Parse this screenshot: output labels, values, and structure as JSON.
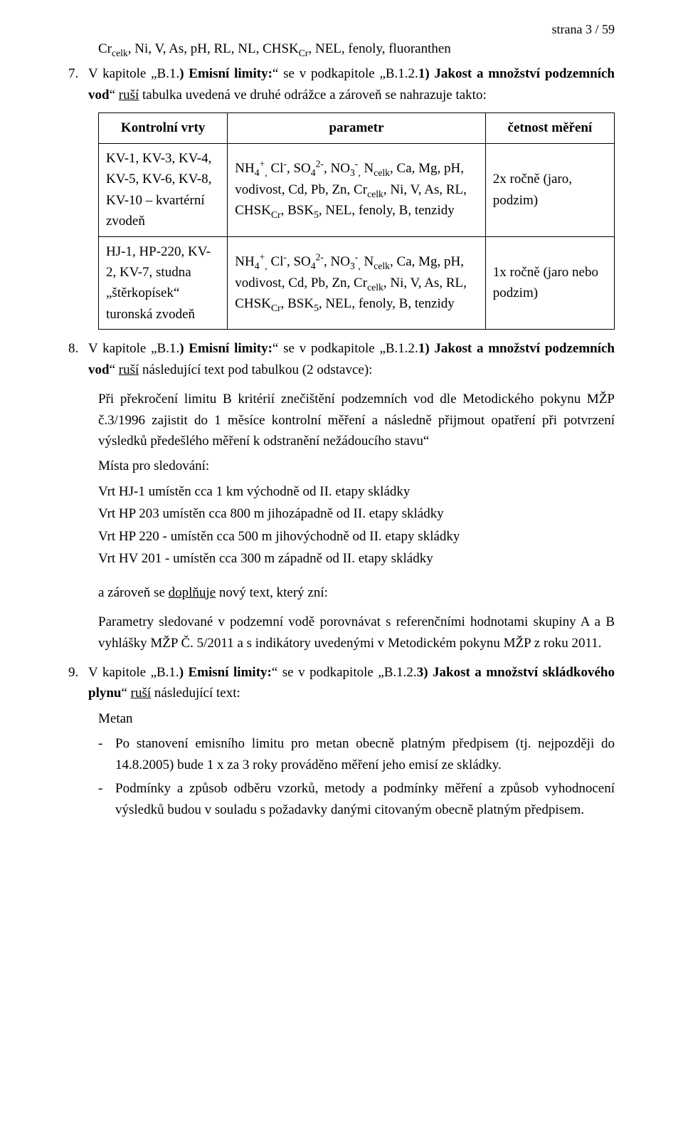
{
  "page_number": "strana 3 / 59",
  "line1": "Cr<sub>celk</sub>, Ni, V, As, pH, RL, NL, CHSK<sub>Cr</sub>, NEL, fenoly,  fluoranthen",
  "p7": {
    "num": "7.",
    "text": "V kapitole  „B.1.<b>) Emisní  limity:</b>“  se  v podkapitole  „B.1.2.<b>1) Jakost  a  množství podzemních vod</b>“ <u>ruší</u> tabulka uvedená ve druhé odrážce a zároveň se nahrazuje takto:"
  },
  "table": {
    "headers": [
      "Kontrolní vrty",
      "parametr",
      "četnost měření"
    ],
    "rows": [
      {
        "c1": "KV-1, KV-3, KV-4, KV-5, KV-6, KV-8, KV-10 – kvartérní zvodeň",
        "c2": "NH<sub>4</sub><sup>+</sup><sub>,</sub> Cl<sup>-</sup>, SO<sub>4</sub><sup>2-</sup>, NO<sub>3</sub><sup>-</sup><sub>,</sub> N<sub>celk</sub>, Ca, Mg, pH, vodivost, Cd, Pb, Zn, Cr<sub>celk</sub>, Ni, V, As, RL, CHSK<sub>Cr</sub>, BSK<sub>5</sub>, NEL, fenoly, B, tenzidy",
        "c3": "2x ročně (jaro, podzim)"
      },
      {
        "c1": "HJ-1, HP-220, KV-2, KV-7, studna „štěrkopísek“ turonská zvodeň",
        "c2": "NH<sub>4</sub><sup>+</sup><sub>,</sub> Cl<sup>-</sup>, SO<sub>4</sub><sup>2-</sup>, NO<sub>3</sub><sup>-</sup><sub>,</sub> N<sub>celk</sub>, Ca, Mg, pH, vodivost, Cd, Pb, Zn, Cr<sub>celk</sub>, Ni, V, As, RL, CHSK<sub>Cr</sub>, BSK<sub>5</sub>, NEL, fenoly, B, tenzidy",
        "c3": "1x ročně (jaro nebo podzim)"
      }
    ]
  },
  "p8": {
    "num": "8.",
    "text": "V  kapitole  „B.1.<b>) Emisní  limity:</b>“  se  v podkapitole  „B.1.2.<b>1) Jakost  a  množství podzemních vod</b>“ <u>ruší</u> následující text pod tabulkou (2 odstavce):"
  },
  "para_prekroceni": "Při překročení limitu B kritérií znečištění podzemních vod dle Metodického pokynu MŽP č.3/1996 zajistit do 1 měsíce kontrolní měření a následně přijmout opatření při potvrzení výsledků předešlého měření k odstranění nežádoucího stavu“",
  "mista_label": "Místa pro sledování:",
  "mista": [
    "Vrt HJ-1 umístěn cca 1 km východně od II. etapy skládky",
    "Vrt HP 203 umístěn cca 800 m jihozápadně od II. etapy skládky",
    "Vrt HP 220 - umístěn cca 500 m jihovýchodně od II. etapy skládky",
    "Vrt HV 201 - umístěn cca 300 m západně od II. etapy skládky"
  ],
  "doplnuje": "a zároveň se <u>doplňuje</u> nový text, který zní:",
  "para_param": "Parametry sledované v podzemní vodě porovnávat s referenčními hodnotami skupiny A a B vyhlášky MŽP Č. 5/2011 a s indikátory uvedenými v Metodickém pokynu MŽP z roku 2011.",
  "p9": {
    "num": "9.",
    "text": "V  kapitole  „B.1.<b>) Emisní  limity:</b>“  se  v podkapitole  „B.1.2.<b>3) Jakost  a  množství skládkového plynu</b>“ <u>ruší</u> následující text:"
  },
  "metan_label": "Metan",
  "metan_bullets": [
    "Po stanovení emisního limitu pro metan obecně platným předpisem (tj. nejpozději do 14.8.2005) bude 1 x za 3 roky prováděno měření jeho emisí ze skládky.",
    "Podmínky a způsob odběru vzorků, metody a podmínky měření a způsob vyhodnocení výsledků budou v souladu s požadavky danými citovaným obecně platným předpisem."
  ]
}
